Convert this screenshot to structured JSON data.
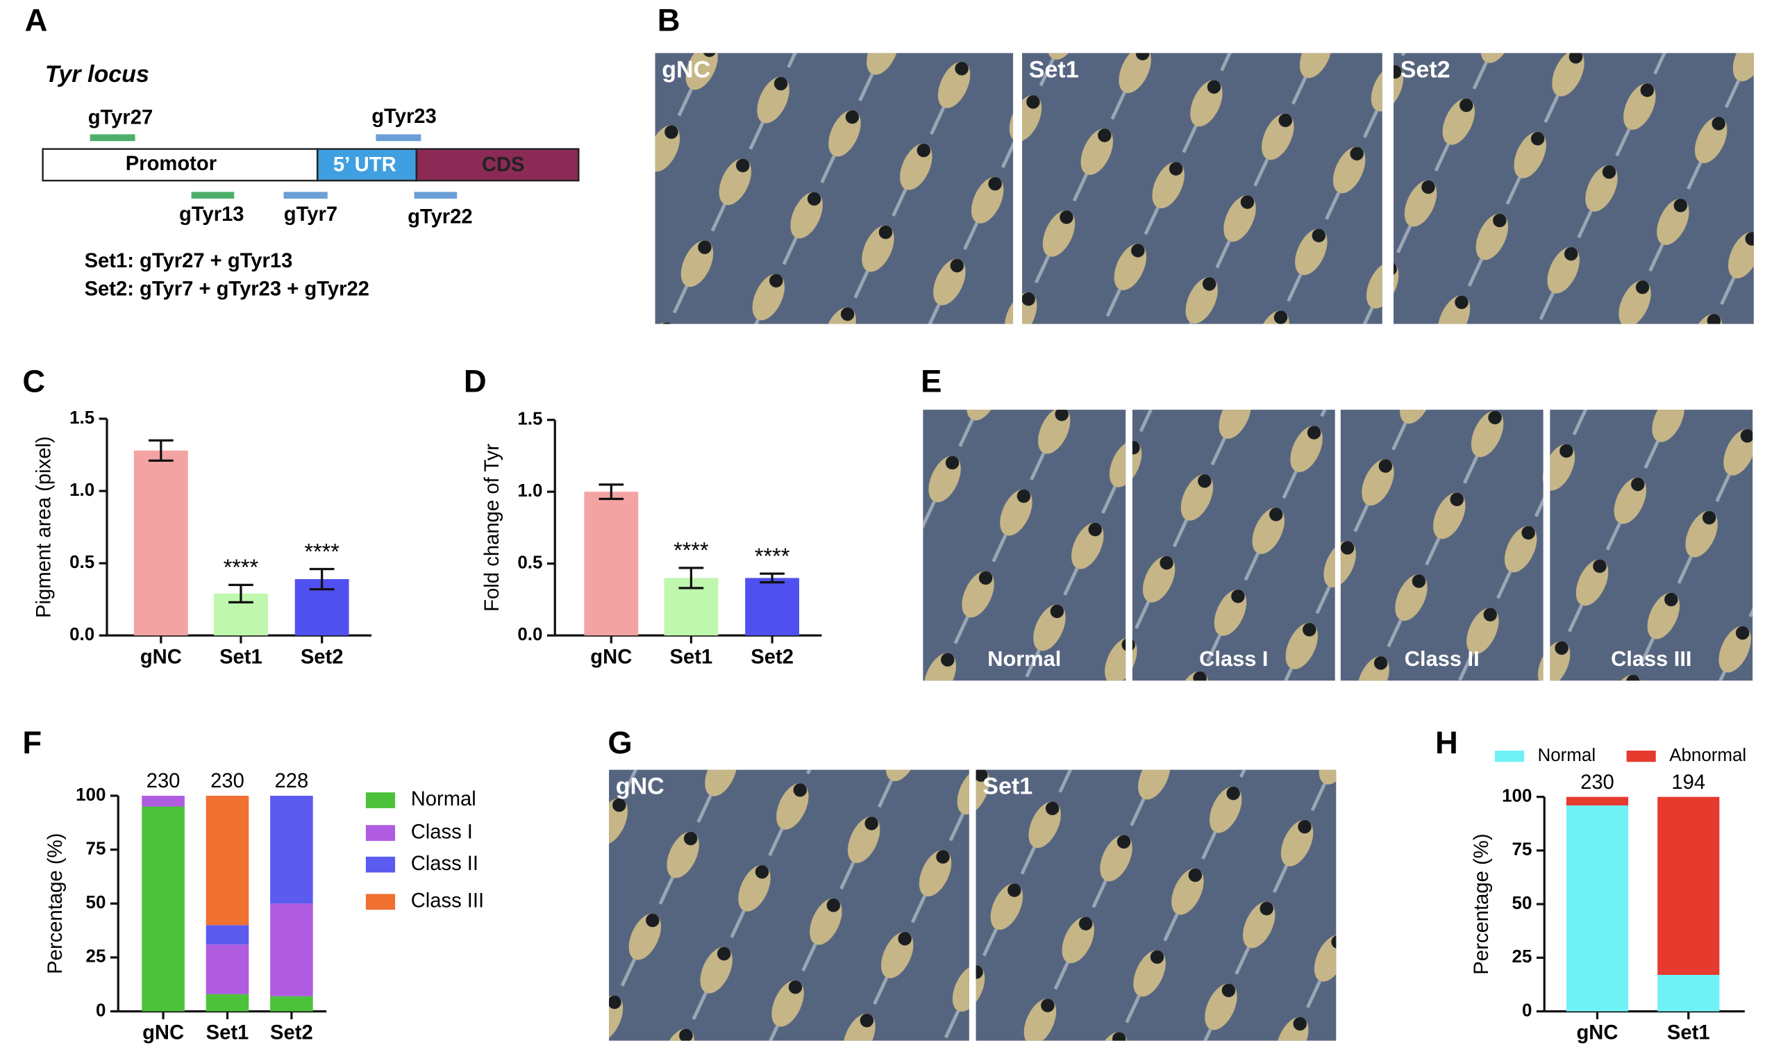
{
  "panels": [
    "A",
    "B",
    "C",
    "D",
    "E",
    "F",
    "G",
    "H"
  ],
  "diagram": {
    "title": "Tyr locus",
    "regions": [
      "Promotor",
      "5’ UTR",
      "CDS"
    ],
    "guides": [
      "gTyr27",
      "gTyr23",
      "gTyr13",
      "gTyr7",
      "gTyr22"
    ],
    "sets": [
      "Set1: gTyr27 + gTyr13",
      "Set2: gTyr7 + gTyr23 + gTyr22"
    ]
  },
  "photos_b": [
    "gNC",
    "Set1",
    "Set2"
  ],
  "photos_e": [
    "Normal",
    "Class I",
    "Class II",
    "Class III"
  ],
  "photos_g": [
    "gNC",
    "Set1"
  ],
  "chart_data": [
    {
      "type": "bar",
      "ylabel": "Pigment area (pixel)",
      "categories": [
        "gNC",
        "Set1",
        "Set2"
      ],
      "values": [
        1.28,
        0.29,
        0.39
      ],
      "errors": [
        0.07,
        0.06,
        0.07
      ],
      "colors": [
        "#f4a3a3",
        "#bff7ae",
        "#5050f0"
      ],
      "annotations": [
        null,
        "****",
        "****"
      ],
      "ylim": [
        0,
        1.5
      ],
      "yticks": [
        {
          "value": 0,
          "label": "0.0"
        },
        {
          "value": 0.5,
          "label": "0.5"
        },
        {
          "value": 1,
          "label": "1.0"
        },
        {
          "value": 1.5,
          "label": "1.5"
        }
      ]
    },
    {
      "type": "bar",
      "ylabel": "Fold change of Tyr",
      "categories": [
        "gNC",
        "Set1",
        "Set2"
      ],
      "values": [
        1.0,
        0.4,
        0.4
      ],
      "errors": [
        0.05,
        0.07,
        0.03
      ],
      "colors": [
        "#f4a3a3",
        "#bff7ae",
        "#5050f0"
      ],
      "annotations": [
        null,
        "****",
        "****"
      ],
      "ylim": [
        0,
        1.5
      ],
      "yticks": [
        {
          "value": 0,
          "label": "0.0"
        },
        {
          "value": 0.5,
          "label": "0.5"
        },
        {
          "value": 1,
          "label": "1.0"
        },
        {
          "value": 1.5,
          "label": "1.5"
        }
      ]
    },
    {
      "type": "stacked",
      "ylabel": "Percentage (%)",
      "categories": [
        "gNC",
        "Set1",
        "Set2"
      ],
      "n": [
        230,
        230,
        228
      ],
      "series": [
        {
          "name": "Normal",
          "color": "#4cc23a",
          "values": [
            95,
            8,
            7
          ]
        },
        {
          "name": "Class I",
          "color": "#b05ce0",
          "values": [
            5,
            23,
            43
          ]
        },
        {
          "name": "Class II",
          "color": "#5b5bf0",
          "values": [
            0,
            9,
            50
          ]
        },
        {
          "name": "Class III",
          "color": "#f07030",
          "values": [
            0,
            60,
            0
          ]
        }
      ],
      "ylim": [
        0,
        100
      ],
      "yticks": [
        0,
        25,
        50,
        75,
        100
      ],
      "legend": "right"
    },
    {
      "type": "stacked",
      "ylabel": "Percentage (%)",
      "categories": [
        "gNC",
        "Set1"
      ],
      "n": [
        230,
        194
      ],
      "series": [
        {
          "name": "Normal",
          "color": "#6ff2f5",
          "values": [
            96,
            17
          ]
        },
        {
          "name": "Abnormal",
          "color": "#e63a2f",
          "values": [
            4,
            83
          ]
        }
      ],
      "ylim": [
        0,
        100
      ],
      "yticks": [
        0,
        25,
        50,
        75,
        100
      ],
      "legend": "top"
    }
  ]
}
